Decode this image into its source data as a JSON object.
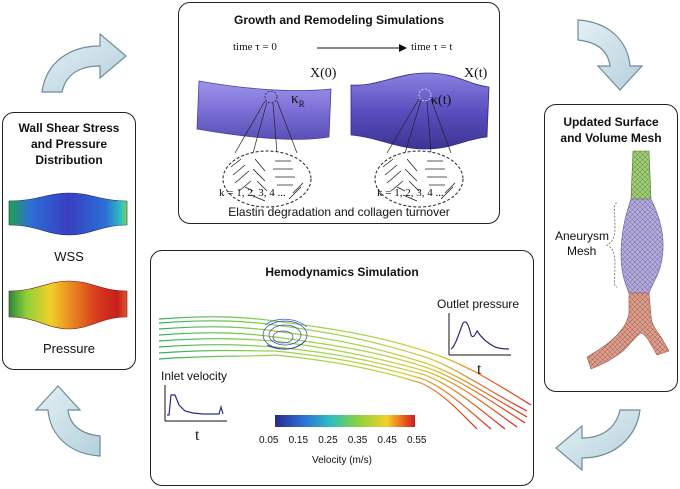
{
  "colors": {
    "vessel_purple": "#7b6fd6",
    "arrow_fill": "#cfe2ea",
    "arrow_stroke": "#6d8c99",
    "panel_border": "#222222",
    "mesh_green": "#9ccf6d",
    "mesh_lavender": "#b4a9e2",
    "mesh_salmon": "#e29a86"
  },
  "growth": {
    "title": "Growth and Remodeling Simulations",
    "time_start": "time  τ = 0",
    "time_end": "time  τ = t",
    "state_start": "X(0)",
    "state_end": "X(t)",
    "kappa_r": "κ",
    "kappa_r_sub": "R",
    "kappa_t": "κ(t)",
    "k_list_left": "k = 1, 2, 3, 4 ...",
    "k_list_right": "k = 1, 2, 3, 4 ...",
    "caption": "Elastin degradation and collagen turnover"
  },
  "wall": {
    "title_line1": "Wall Shear Stress",
    "title_line2": "and Pressure",
    "title_line3": "Distribution",
    "wss_label": "WSS",
    "pressure_label": "Pressure"
  },
  "mesh": {
    "title_line1": "Updated Surface",
    "title_line2": "and Volume Mesh",
    "aneurysm_line1": "Aneurysm",
    "aneurysm_line2": "Mesh"
  },
  "hemo": {
    "title": "Hemodynamics Simulation",
    "inlet_label": "Inlet velocity",
    "outlet_label": "Outlet pressure",
    "time_axis_inlet": "t",
    "time_axis_outlet": "t",
    "colorbar_ticks": [
      "0.05",
      "0.15",
      "0.25",
      "0.35",
      "0.45",
      "0.55"
    ],
    "colorbar_title": "Velocity (m/s)"
  }
}
